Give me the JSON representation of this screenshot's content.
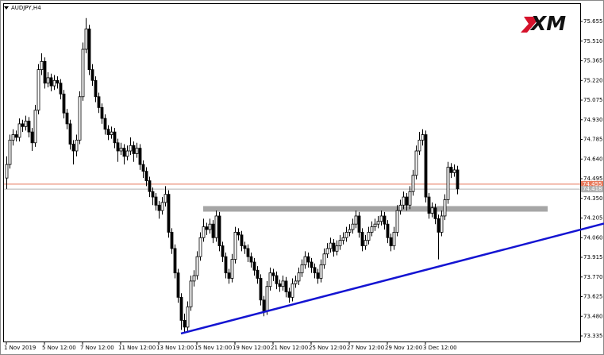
{
  "chart_data": {
    "type": "candlestick",
    "title": "AUDJPY,H4",
    "logo": "XM",
    "ylim": [
      73.294,
      75.79
    ],
    "yticks": [
      75.655,
      {
        "value": 75.51,
        "label": "75.510"
      },
      75.365,
      {
        "value": 75.22,
        "label": "75.220"
      },
      75.075,
      {
        "value": 74.93,
        "label": "74.930"
      },
      74.785,
      {
        "value": 74.64,
        "label": "74.640"
      },
      74.495,
      {
        "value": 74.35,
        "label": "74.350"
      },
      74.205,
      {
        "value": 74.06,
        "label": "74.060"
      },
      73.915,
      {
        "value": 73.77,
        "label": "73.770"
      },
      73.625,
      {
        "value": 73.48,
        "label": "73.480"
      },
      73.335
    ],
    "grid": false,
    "bull_color": "#ffffff",
    "bear_color": "#000000",
    "wick_color": "#000000",
    "price_lines": [
      {
        "value": 74.455,
        "color": "#e8785a"
      },
      {
        "value": 74.418,
        "color": "#b0b0b0"
      }
    ],
    "zones": [
      {
        "from_index": 62,
        "to_index": 170.5,
        "low": 74.252,
        "high": 74.293,
        "color": "#a6a6a6"
      }
    ],
    "trendlines": [
      {
        "start_index": 55,
        "start": 73.353,
        "end_index": 188.25,
        "end": 74.164,
        "color": "#1414d2"
      }
    ],
    "categories": [
      "1 Nov 2019",
      null,
      null,
      null,
      null,
      null,
      null,
      null,
      null,
      null,
      null,
      null,
      "5 Nov 12:00",
      null,
      null,
      null,
      null,
      null,
      null,
      null,
      null,
      null,
      null,
      null,
      "7 Nov 12:00",
      null,
      null,
      null,
      null,
      null,
      null,
      null,
      null,
      null,
      null,
      null,
      "11 Nov 12:00",
      null,
      null,
      null,
      null,
      null,
      null,
      null,
      null,
      null,
      null,
      null,
      "13 Nov 12:00",
      null,
      null,
      null,
      null,
      null,
      null,
      null,
      null,
      null,
      null,
      null,
      "15 Nov 12:00",
      null,
      null,
      null,
      null,
      null,
      null,
      null,
      null,
      null,
      null,
      null,
      "19 Nov 12:00",
      null,
      null,
      null,
      null,
      null,
      null,
      null,
      null,
      null,
      null,
      null,
      "21 Nov 12:00",
      null,
      null,
      null,
      null,
      null,
      null,
      null,
      null,
      null,
      null,
      null,
      "25 Nov 12:00",
      null,
      null,
      null,
      null,
      null,
      null,
      null,
      null,
      null,
      null,
      null,
      "27 Nov 12:00",
      null,
      null,
      null,
      null,
      null,
      null,
      null,
      null,
      null,
      null,
      null,
      "29 Nov 12:00",
      null,
      null,
      null,
      null,
      null,
      null,
      null,
      null,
      null,
      null,
      null,
      "3 Dec 12:00",
      null,
      null,
      null,
      null,
      null,
      null,
      null,
      null,
      null,
      null
    ],
    "candles": [
      [
        74.5,
        74.66,
        74.42,
        74.6
      ],
      [
        74.6,
        74.82,
        74.57,
        74.78
      ],
      [
        74.78,
        74.86,
        74.74,
        74.82
      ],
      [
        74.82,
        74.85,
        74.77,
        74.8
      ],
      [
        74.8,
        74.94,
        74.77,
        74.9
      ],
      [
        74.9,
        74.93,
        74.84,
        74.88
      ],
      [
        74.88,
        74.96,
        74.85,
        74.92
      ],
      [
        74.92,
        74.95,
        74.8,
        74.84
      ],
      [
        74.84,
        74.87,
        74.7,
        74.76
      ],
      [
        74.76,
        75.04,
        74.73,
        75.0
      ],
      [
        75.0,
        75.34,
        74.97,
        75.3
      ],
      [
        75.3,
        75.42,
        75.26,
        75.36
      ],
      [
        75.36,
        75.39,
        75.16,
        75.2
      ],
      [
        75.2,
        75.28,
        75.17,
        75.24
      ],
      [
        75.24,
        75.27,
        75.14,
        75.18
      ],
      [
        75.18,
        75.26,
        75.15,
        75.22
      ],
      [
        75.22,
        75.25,
        75.16,
        75.2
      ],
      [
        75.2,
        75.23,
        75.08,
        75.12
      ],
      [
        75.12,
        75.15,
        74.94,
        74.98
      ],
      [
        74.98,
        75.01,
        74.86,
        74.9
      ],
      [
        74.9,
        74.93,
        74.71,
        74.75
      ],
      [
        74.75,
        74.78,
        74.6,
        74.7
      ],
      [
        74.7,
        74.82,
        74.66,
        74.78
      ],
      [
        74.78,
        75.14,
        74.75,
        75.1
      ],
      [
        75.1,
        75.5,
        75.07,
        75.45
      ],
      [
        75.45,
        75.68,
        75.42,
        75.6
      ],
      [
        75.6,
        75.63,
        75.26,
        75.3
      ],
      [
        75.3,
        75.34,
        75.18,
        75.22
      ],
      [
        75.22,
        75.25,
        75.06,
        75.1
      ],
      [
        75.1,
        75.13,
        74.98,
        75.02
      ],
      [
        75.02,
        75.05,
        74.9,
        74.94
      ],
      [
        74.94,
        74.97,
        74.82,
        74.86
      ],
      [
        74.86,
        74.89,
        74.78,
        74.82
      ],
      [
        74.82,
        74.88,
        74.79,
        74.84
      ],
      [
        74.84,
        74.87,
        74.72,
        74.76
      ],
      [
        74.76,
        74.79,
        74.62,
        74.7
      ],
      [
        74.7,
        74.76,
        74.67,
        74.72
      ],
      [
        74.72,
        74.75,
        74.6,
        74.66
      ],
      [
        74.66,
        74.74,
        74.63,
        74.7
      ],
      [
        74.7,
        74.8,
        74.67,
        74.74
      ],
      [
        74.74,
        74.77,
        74.62,
        74.68
      ],
      [
        74.68,
        74.76,
        74.65,
        74.72
      ],
      [
        74.72,
        74.75,
        74.56,
        74.6
      ],
      [
        74.6,
        74.63,
        74.5,
        74.55
      ],
      [
        74.55,
        74.58,
        74.44,
        74.48
      ],
      [
        74.48,
        74.51,
        74.36,
        74.4
      ],
      [
        74.4,
        74.43,
        74.3,
        74.36
      ],
      [
        74.36,
        74.39,
        74.26,
        74.3
      ],
      [
        74.3,
        74.33,
        74.2,
        74.26
      ],
      [
        74.26,
        74.36,
        74.23,
        74.32
      ],
      [
        74.32,
        74.44,
        74.29,
        74.38
      ],
      [
        74.38,
        74.41,
        74.06,
        74.1
      ],
      [
        74.1,
        74.13,
        73.94,
        73.98
      ],
      [
        73.98,
        74.01,
        73.76,
        73.8
      ],
      [
        73.8,
        73.83,
        73.58,
        73.62
      ],
      [
        73.62,
        73.65,
        73.38,
        73.45
      ],
      [
        73.45,
        73.5,
        73.36,
        73.4
      ],
      [
        73.4,
        73.59,
        73.37,
        73.55
      ],
      [
        73.55,
        73.78,
        73.52,
        73.74
      ],
      [
        73.74,
        73.82,
        73.7,
        73.78
      ],
      [
        73.78,
        73.96,
        73.75,
        73.92
      ],
      [
        73.92,
        74.1,
        73.89,
        74.06
      ],
      [
        74.06,
        74.2,
        74.03,
        74.14
      ],
      [
        74.14,
        74.17,
        74.08,
        74.12
      ],
      [
        74.12,
        74.2,
        74.09,
        74.16
      ],
      [
        74.16,
        74.19,
        74.02,
        74.06
      ],
      [
        74.06,
        74.26,
        74.03,
        74.22
      ],
      [
        74.22,
        74.25,
        73.96,
        74.0
      ],
      [
        74.0,
        74.03,
        73.88,
        73.92
      ],
      [
        73.92,
        73.95,
        73.76,
        73.8
      ],
      [
        73.8,
        73.83,
        73.72,
        73.76
      ],
      [
        73.76,
        73.94,
        73.73,
        73.9
      ],
      [
        73.9,
        74.14,
        73.87,
        74.1
      ],
      [
        74.1,
        74.13,
        74.04,
        74.08
      ],
      [
        74.08,
        74.11,
        73.96,
        74.0
      ],
      [
        74.0,
        74.03,
        73.94,
        73.98
      ],
      [
        73.98,
        74.01,
        73.88,
        73.92
      ],
      [
        73.92,
        73.95,
        73.84,
        73.88
      ],
      [
        73.88,
        73.91,
        73.78,
        73.82
      ],
      [
        73.82,
        73.85,
        73.72,
        73.76
      ],
      [
        73.76,
        73.79,
        73.56,
        73.6
      ],
      [
        73.6,
        73.63,
        73.48,
        73.52
      ],
      [
        73.52,
        73.74,
        73.49,
        73.7
      ],
      [
        73.7,
        73.84,
        73.67,
        73.8
      ],
      [
        73.8,
        73.83,
        73.74,
        73.78
      ],
      [
        73.78,
        73.81,
        73.68,
        73.72
      ],
      [
        73.72,
        73.75,
        73.66,
        73.7
      ],
      [
        73.7,
        73.78,
        73.67,
        73.74
      ],
      [
        73.74,
        73.77,
        73.62,
        73.66
      ],
      [
        73.66,
        73.69,
        73.58,
        73.62
      ],
      [
        73.62,
        73.76,
        73.59,
        73.72
      ],
      [
        73.72,
        73.78,
        73.69,
        73.74
      ],
      [
        73.74,
        73.84,
        73.71,
        73.8
      ],
      [
        73.8,
        73.9,
        73.77,
        73.86
      ],
      [
        73.86,
        73.96,
        73.83,
        73.92
      ],
      [
        73.92,
        73.95,
        73.84,
        73.88
      ],
      [
        73.88,
        73.91,
        73.8,
        73.84
      ],
      [
        73.84,
        73.87,
        73.76,
        73.8
      ],
      [
        73.8,
        73.83,
        73.72,
        73.76
      ],
      [
        73.76,
        73.9,
        73.73,
        73.86
      ],
      [
        73.86,
        73.98,
        73.83,
        73.94
      ],
      [
        73.94,
        74.02,
        73.91,
        73.98
      ],
      [
        73.98,
        74.06,
        73.95,
        74.02
      ],
      [
        74.02,
        74.05,
        73.92,
        73.96
      ],
      [
        73.96,
        74.04,
        73.93,
        74.0
      ],
      [
        74.0,
        74.08,
        73.97,
        74.04
      ],
      [
        74.04,
        74.1,
        74.01,
        74.06
      ],
      [
        74.06,
        74.14,
        74.03,
        74.1
      ],
      [
        74.1,
        74.16,
        74.07,
        74.12
      ],
      [
        74.12,
        74.2,
        74.09,
        74.16
      ],
      [
        74.16,
        74.26,
        74.13,
        74.22
      ],
      [
        74.22,
        74.25,
        74.06,
        74.1
      ],
      [
        74.1,
        74.13,
        73.96,
        74.0
      ],
      [
        74.0,
        74.08,
        73.97,
        74.04
      ],
      [
        74.04,
        74.14,
        74.01,
        74.1
      ],
      [
        74.1,
        74.18,
        74.07,
        74.14
      ],
      [
        74.14,
        74.2,
        74.11,
        74.16
      ],
      [
        74.16,
        74.22,
        74.13,
        74.18
      ],
      [
        74.18,
        74.26,
        74.15,
        74.22
      ],
      [
        74.22,
        74.25,
        74.12,
        74.16
      ],
      [
        74.16,
        74.19,
        74.02,
        74.06
      ],
      [
        74.06,
        74.09,
        73.96,
        74.0
      ],
      [
        74.0,
        74.14,
        73.97,
        74.1
      ],
      [
        74.1,
        74.3,
        74.07,
        74.26
      ],
      [
        74.26,
        74.34,
        74.23,
        74.3
      ],
      [
        74.3,
        74.4,
        74.27,
        74.36
      ],
      [
        74.36,
        74.39,
        74.26,
        74.3
      ],
      [
        74.3,
        74.44,
        74.27,
        74.4
      ],
      [
        74.4,
        74.56,
        74.37,
        74.52
      ],
      [
        74.52,
        74.74,
        74.49,
        74.7
      ],
      [
        74.7,
        74.84,
        74.67,
        74.78
      ],
      [
        74.78,
        74.86,
        74.74,
        74.82
      ],
      [
        74.82,
        74.85,
        74.32,
        74.36
      ],
      [
        74.36,
        74.39,
        74.2,
        74.24
      ],
      [
        74.24,
        74.32,
        74.21,
        74.28
      ],
      [
        74.28,
        74.31,
        74.16,
        74.2
      ],
      [
        74.2,
        74.23,
        73.9,
        74.1
      ],
      [
        74.1,
        74.26,
        74.07,
        74.22
      ],
      [
        74.22,
        74.38,
        74.19,
        74.34
      ],
      [
        74.34,
        74.62,
        74.31,
        74.58
      ],
      [
        74.58,
        74.61,
        74.5,
        74.54
      ],
      [
        74.54,
        74.6,
        74.51,
        74.56
      ],
      [
        74.56,
        74.59,
        74.38,
        74.42
      ]
    ]
  }
}
